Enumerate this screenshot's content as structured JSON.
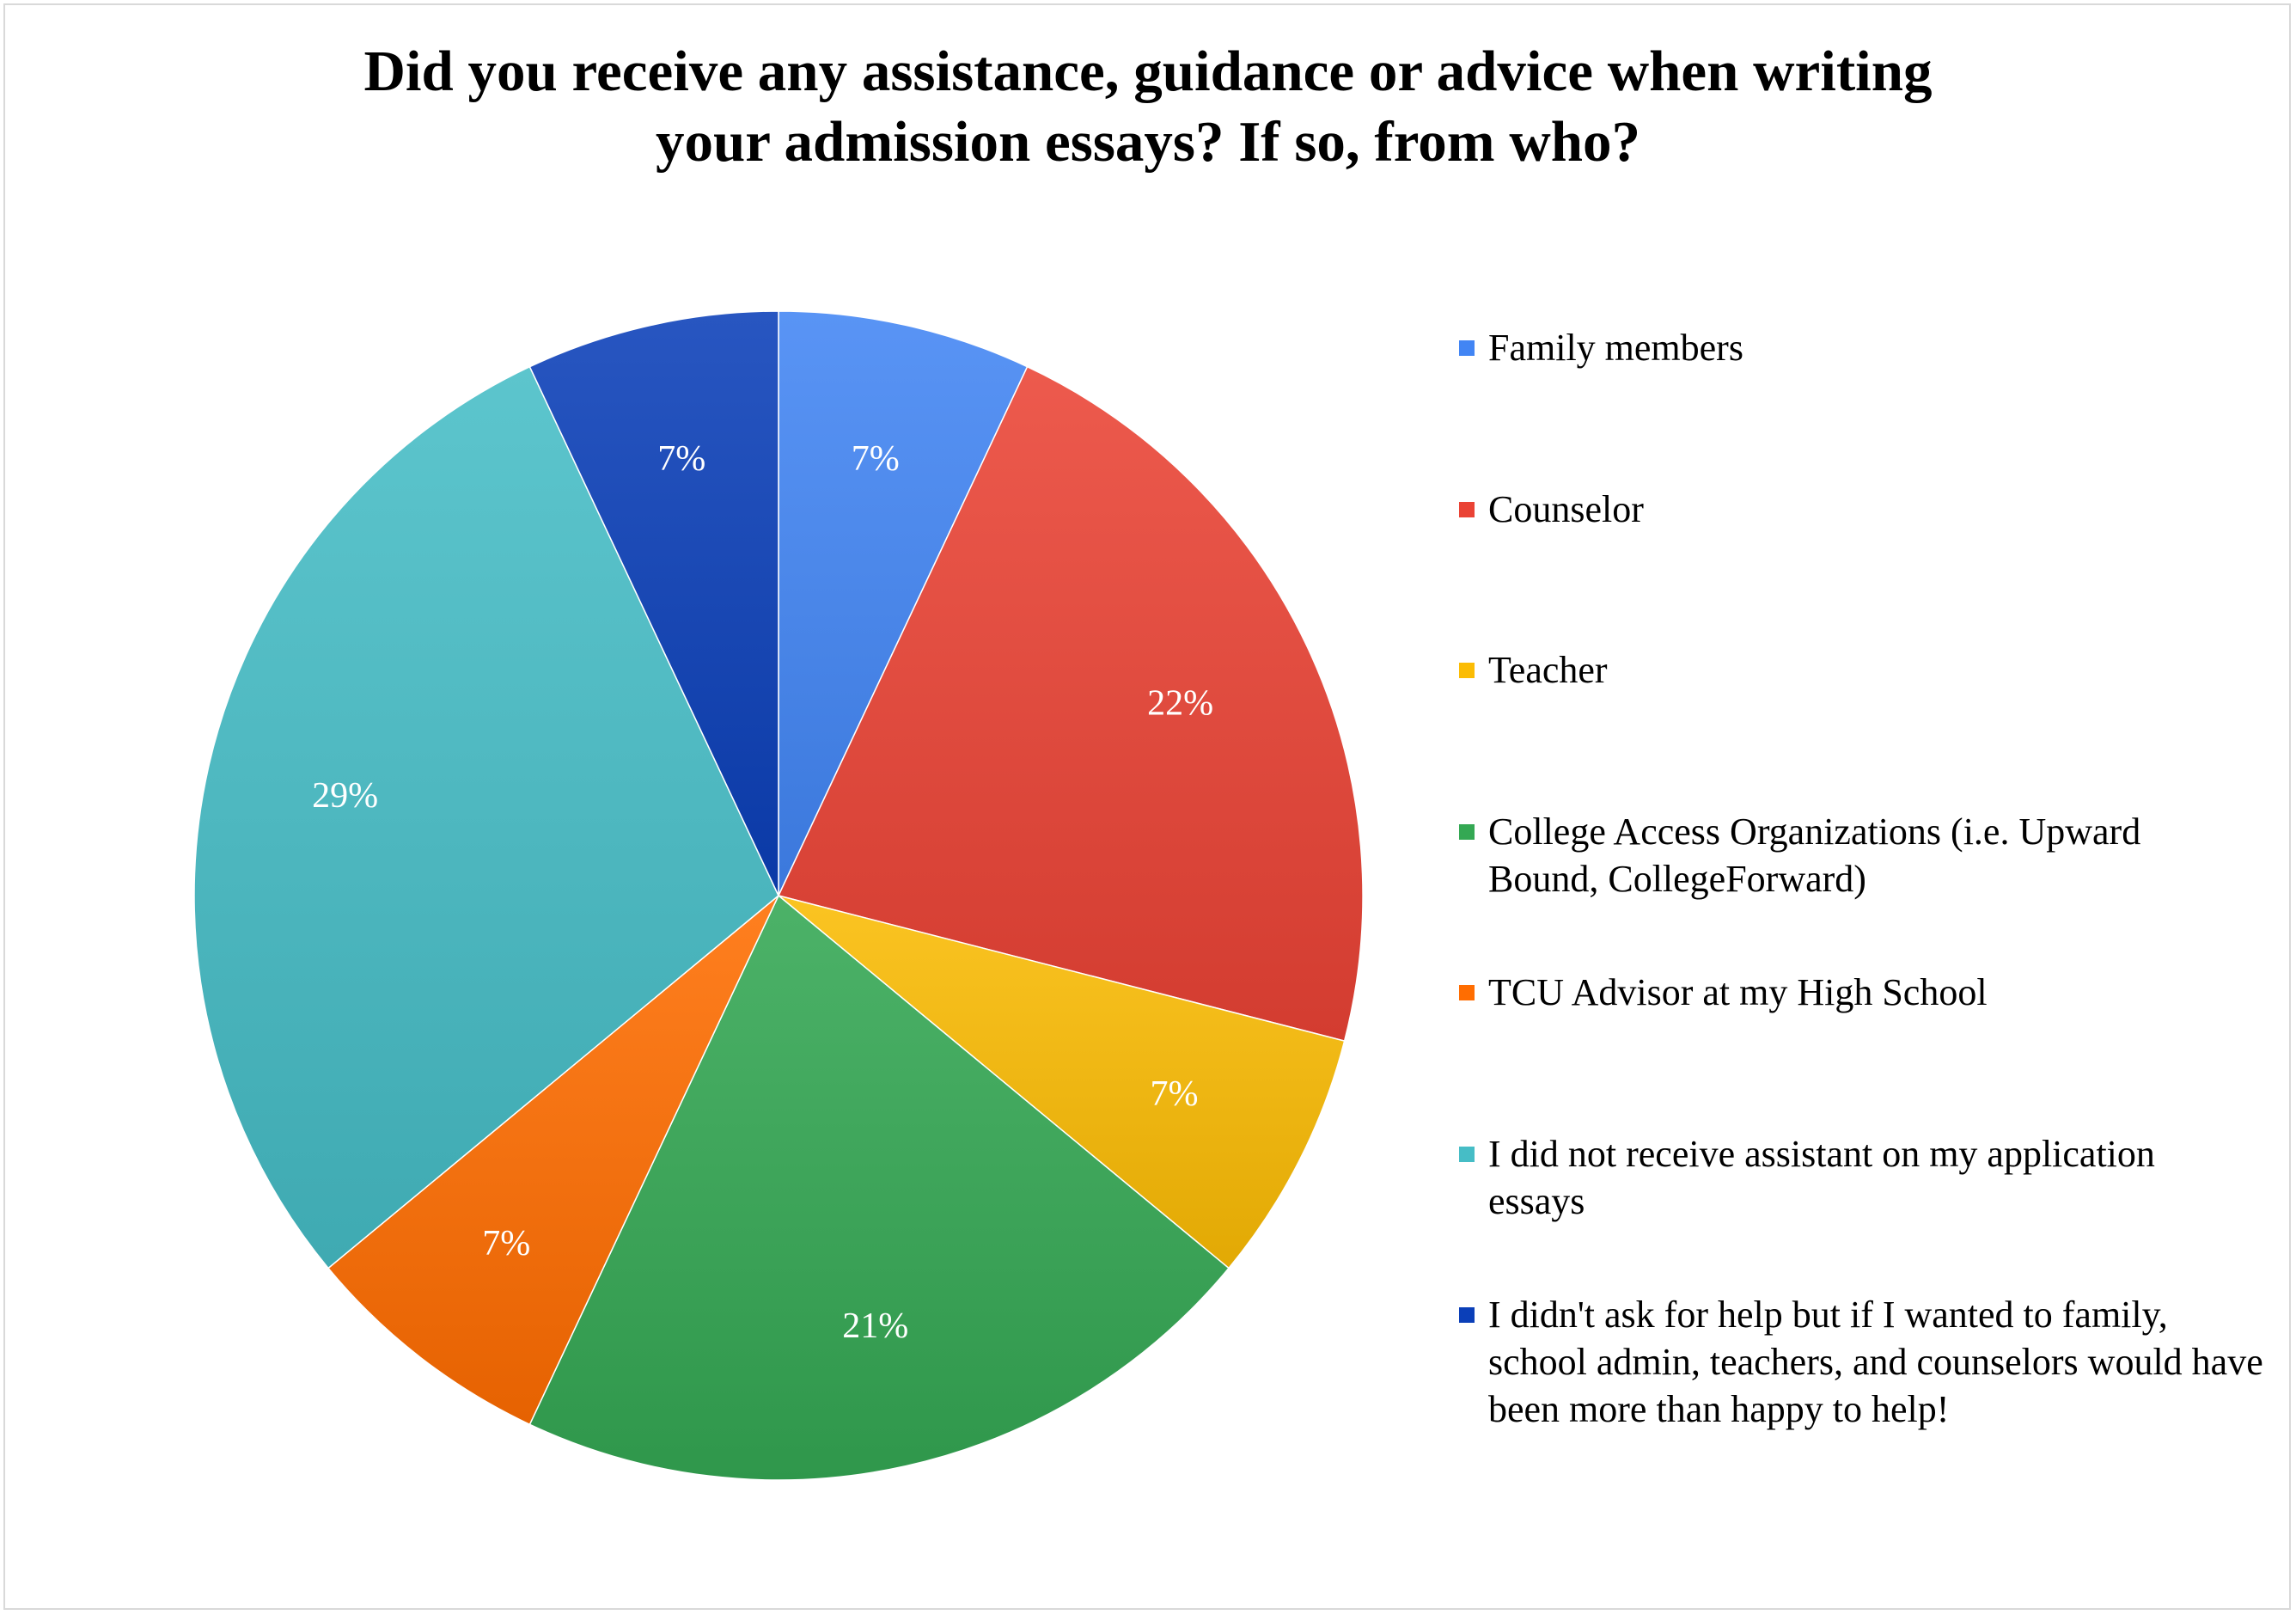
{
  "chart_data": {
    "type": "pie",
    "title": "Did you receive any assistance, guidance or advice when writing your admission essays? If so, from who?",
    "title_lines": [
      "Did you receive any assistance, guidance or advice when writing",
      "your admission essays? If so, from who?"
    ],
    "legend_position": "right",
    "slices": [
      {
        "label": "Family members",
        "value": 7,
        "display": "7%",
        "color": "#4285F4"
      },
      {
        "label": "Counselor",
        "value": 22,
        "display": "22%",
        "color": "#EA4335"
      },
      {
        "label": "Teacher",
        "value": 7,
        "display": "7%",
        "color": "#FBBC04"
      },
      {
        "label": "College Access Organizations (i.e. Upward Bound, CollegeForward)",
        "value": 21,
        "display": "21%",
        "color": "#34A853"
      },
      {
        "label": "TCU Advisor at my High School",
        "value": 7,
        "display": "7%",
        "color": "#FF6D01"
      },
      {
        "label": "I did not receive assistant on my application essays",
        "value": 29,
        "display": "29%",
        "color": "#46BDC6"
      },
      {
        "label": "I didn't ask for help but if I wanted to family, school admin, teachers, and counselors would have been more than happy to help!",
        "value": 7,
        "display": "7%",
        "color": "#0B3FB8"
      }
    ]
  }
}
